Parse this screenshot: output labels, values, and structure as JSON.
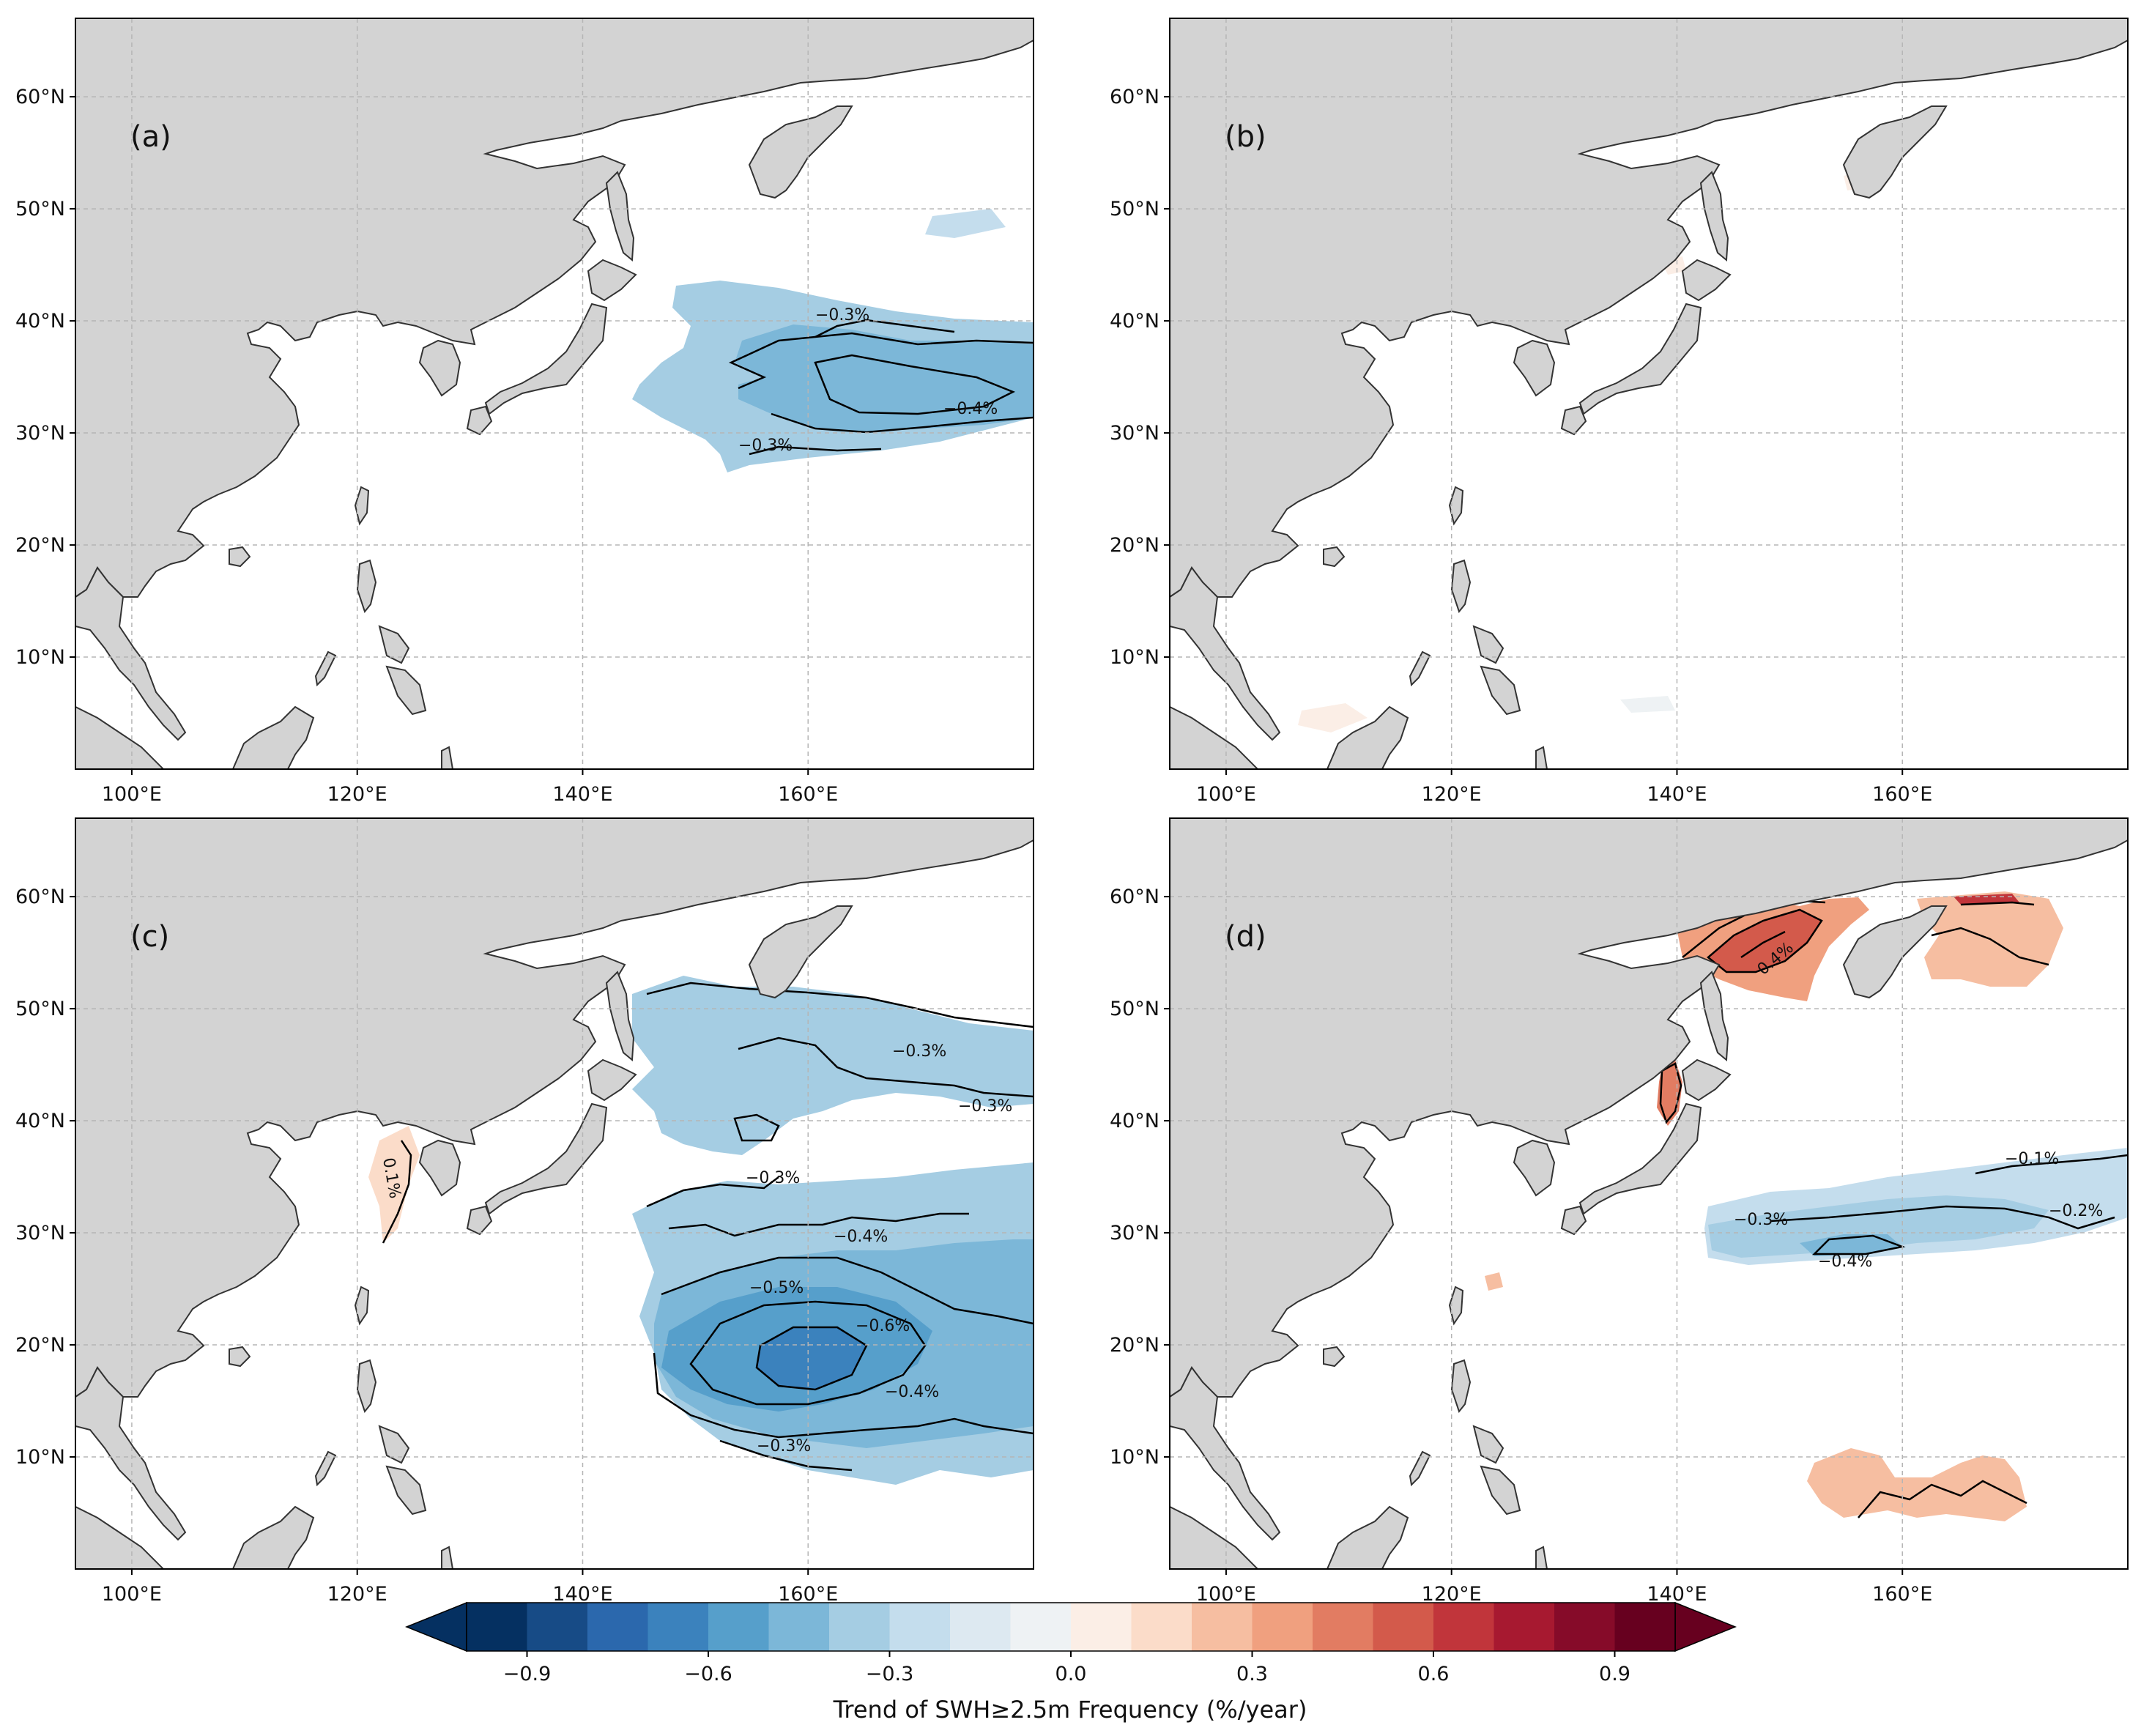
{
  "figure": {
    "panels": [
      {
        "id": "a",
        "label": "(a)",
        "contours": [
          {
            "text": "−0.3%"
          },
          {
            "text": "−0.4%"
          },
          {
            "text": "−0.3%"
          }
        ]
      },
      {
        "id": "b",
        "label": "(b)",
        "contours": []
      },
      {
        "id": "c",
        "label": "(c)",
        "contours": [
          {
            "text": "−0.3%"
          },
          {
            "text": "−0.3%"
          },
          {
            "text": "−0.3%"
          },
          {
            "text": "−0.4%"
          },
          {
            "text": "−0.5%"
          },
          {
            "text": "−0.6%"
          },
          {
            "text": "−0.4%"
          },
          {
            "text": "−0.3%"
          },
          {
            "text": "0.1%"
          }
        ]
      },
      {
        "id": "d",
        "label": "(d)",
        "contours": [
          {
            "text": "0.4%"
          },
          {
            "text": "−0.1%"
          },
          {
            "text": "−0.2%"
          },
          {
            "text": "−0.3%"
          },
          {
            "text": "−0.4%"
          }
        ]
      }
    ],
    "axes": {
      "lon_range": [
        95,
        180
      ],
      "lat_range": [
        0,
        67
      ],
      "lat_ticks": [
        "10°N",
        "20°N",
        "30°N",
        "40°N",
        "50°N",
        "60°N"
      ],
      "lon_ticks": [
        "100°E",
        "120°E",
        "140°E",
        "160°E"
      ]
    },
    "colors": {
      "land": "#d3d3d3",
      "coast": "#333333",
      "grid": "#b5b5b5",
      "contour": "#000000"
    },
    "colorbar": {
      "title": "Trend of SWH≥2.5m Frequency (%/year)",
      "range": [
        -1.0,
        1.0
      ],
      "step": 0.1,
      "ticks": [
        "−0.9",
        "−0.6",
        "−0.3",
        "0.0",
        "0.3",
        "0.6",
        "0.9"
      ],
      "colors": [
        "#053061",
        "#174b86",
        "#2b68ad",
        "#3b82bd",
        "#569fcb",
        "#7cb7d8",
        "#a5cde3",
        "#c4dded",
        "#dde9f1",
        "#eef2f4",
        "#fbeee6",
        "#fbdcc9",
        "#f6bea1",
        "#f0a07f",
        "#e27c62",
        "#d35a4b",
        "#c1353b",
        "#a71930",
        "#860b29",
        "#67001f"
      ]
    }
  }
}
